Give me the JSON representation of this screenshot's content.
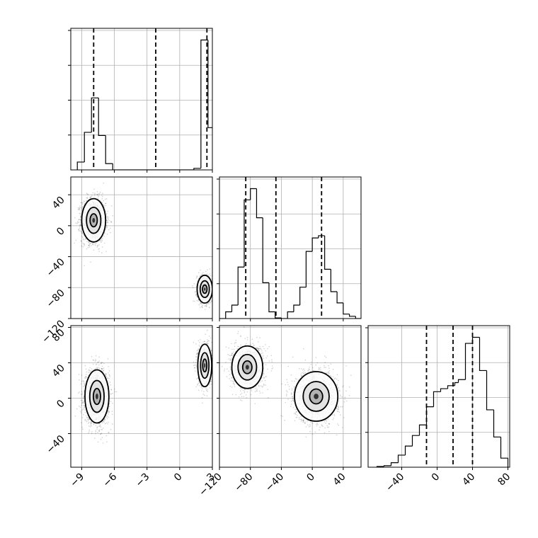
{
  "chart_data": {
    "type": "corner",
    "grid": true,
    "parameters": [
      {
        "ticks": [
          -9,
          -6,
          -3,
          0,
          3
        ],
        "tick_labels": [
          "−9",
          "−6",
          "−3",
          "0",
          "3"
        ],
        "range": [
          -10.0,
          3.0
        ]
      },
      {
        "ticks": [
          -120,
          -80,
          -40,
          0,
          40
        ],
        "tick_labels": [
          "−120",
          "−80",
          "−40",
          "0",
          "40"
        ],
        "range": [
          -120,
          63
        ]
      },
      {
        "ticks": [
          -40,
          0,
          40,
          80
        ],
        "tick_labels": [
          "−40",
          "0",
          "40",
          "80"
        ],
        "range": [
          -78,
          82
        ]
      }
    ],
    "marginals": [
      {
        "param": 0,
        "bin_edges": [
          -9.4,
          -8.75,
          -8.1,
          -7.45,
          -6.8,
          -6.15,
          -5.5,
          1.3,
          1.95,
          2.6,
          3.25
        ],
        "counts": [
          0.05,
          0.24,
          0.46,
          0.22,
          0.04,
          0,
          0,
          0.01,
          0.83,
          0.27
        ],
        "quantiles": [
          -7.9,
          -2.2,
          2.5
        ]
      },
      {
        "param": 1,
        "bin_edges": [
          -120,
          -112,
          -104,
          -96,
          -88,
          -80,
          -72,
          -64,
          -56,
          -48,
          -40,
          -32,
          -24,
          -16,
          -8,
          0,
          8,
          16,
          24,
          32,
          40,
          48,
          56,
          63
        ],
        "counts": [
          0,
          0.03,
          0.06,
          0.23,
          0.53,
          0.58,
          0.45,
          0.16,
          0.03,
          0.003,
          0,
          0.03,
          0.06,
          0.14,
          0.3,
          0.36,
          0.37,
          0.22,
          0.12,
          0.07,
          0.02,
          0.01,
          0
        ],
        "quantiles": [
          -86,
          -47,
          12
        ]
      },
      {
        "param": 2,
        "bin_edges": [
          -68,
          -60,
          -52,
          -44,
          -36,
          -28,
          -20,
          -12,
          -4,
          4,
          12,
          20,
          24,
          32,
          40,
          48,
          56,
          64,
          72,
          80
        ],
        "counts": [
          0.005,
          0.01,
          0.03,
          0.08,
          0.14,
          0.21,
          0.28,
          0.4,
          0.5,
          0.52,
          0.54,
          0.56,
          0.58,
          0.82,
          0.86,
          0.64,
          0.38,
          0.2,
          0.06
        ],
        "quantiles": [
          -12,
          18,
          40
        ]
      }
    ],
    "joint_modes": [
      {
        "x_param": 0,
        "y_param": 1,
        "centers": [
          [
            -7.9,
            7
          ],
          [
            2.3,
            -82
          ]
        ]
      },
      {
        "x_param": 0,
        "y_param": 2,
        "centers": [
          [
            -7.6,
            2
          ],
          [
            2.3,
            37
          ]
        ]
      },
      {
        "x_param": 1,
        "y_param": 2,
        "centers": [
          [
            -84,
            35
          ],
          [
            5,
            2
          ]
        ]
      }
    ]
  }
}
